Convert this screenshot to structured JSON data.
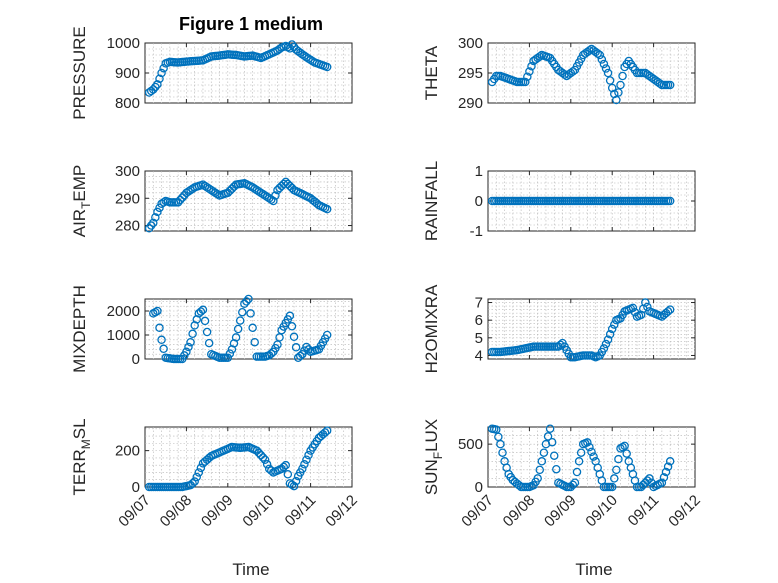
{
  "figure": {
    "title": "Figure 1 medium",
    "xlabel": "Time",
    "x_tick_labels": [
      "09/07",
      "09/08",
      "09/09",
      "09/10",
      "09/11",
      "09/12"
    ],
    "marker_color": "#0072BD"
  },
  "chart_data": [
    {
      "type": "scatter",
      "title": "Figure 1 medium",
      "ylabel": "PRESSURE",
      "ylim": [
        800,
        1000
      ],
      "yticks": [
        800,
        900,
        1000
      ],
      "xlim": [
        0,
        5
      ],
      "grid": true,
      "x": [
        0.1,
        0.2,
        0.3,
        0.4,
        0.5,
        0.6,
        0.8,
        1.0,
        1.2,
        1.4,
        1.6,
        1.8,
        2.0,
        2.2,
        2.4,
        2.6,
        2.8,
        3.0,
        3.2,
        3.3,
        3.4,
        3.5,
        3.55,
        3.65,
        3.8,
        3.95,
        4.1,
        4.3,
        4.4
      ],
      "y": [
        835,
        845,
        862,
        900,
        932,
        937,
        935,
        938,
        940,
        942,
        955,
        958,
        962,
        960,
        955,
        958,
        950,
        962,
        975,
        985,
        990,
        982,
        995,
        978,
        962,
        948,
        935,
        925,
        920
      ]
    },
    {
      "type": "scatter",
      "title": "",
      "ylabel": "THETA",
      "ylim": [
        290,
        300
      ],
      "yticks": [
        290,
        295,
        300
      ],
      "xlim": [
        0,
        5
      ],
      "grid": true,
      "x": [
        0.1,
        0.2,
        0.3,
        0.5,
        0.7,
        0.9,
        1.1,
        1.3,
        1.5,
        1.7,
        1.9,
        2.1,
        2.3,
        2.5,
        2.7,
        2.8,
        2.9,
        3.0,
        3.1,
        3.2,
        3.3,
        3.4,
        3.6,
        3.8,
        4.0,
        4.2,
        4.4
      ],
      "y": [
        293.5,
        294.5,
        294.5,
        294.0,
        293.5,
        293.5,
        297.0,
        298.0,
        297.5,
        295.5,
        294.5,
        295.5,
        298.0,
        299.0,
        298.0,
        296.5,
        295.0,
        292.5,
        290.5,
        293.0,
        296.0,
        297.0,
        295.0,
        295.0,
        294.0,
        293.0,
        293.0
      ]
    },
    {
      "type": "scatter",
      "title": "",
      "ylabel": "AIR_TEMP",
      "ylim": [
        278,
        300
      ],
      "yticks": [
        280,
        290,
        300
      ],
      "xlim": [
        0,
        5
      ],
      "grid": true,
      "x": [
        0.1,
        0.2,
        0.3,
        0.4,
        0.5,
        0.6,
        0.8,
        1.0,
        1.2,
        1.4,
        1.6,
        1.8,
        2.0,
        2.2,
        2.4,
        2.6,
        2.8,
        3.0,
        3.1,
        3.2,
        3.4,
        3.6,
        3.8,
        4.0,
        4.2,
        4.4
      ],
      "y": [
        279,
        281,
        285,
        288,
        289,
        288.5,
        288.5,
        292,
        294,
        295,
        293,
        291,
        292,
        295,
        295.5,
        294,
        292,
        290,
        289,
        293,
        296,
        293,
        291.5,
        290,
        287.5,
        286
      ]
    },
    {
      "type": "scatter",
      "title": "",
      "ylabel": "RAINFALL",
      "ylim": [
        -1,
        1
      ],
      "yticks": [
        -1,
        0,
        1
      ],
      "xlim": [
        0,
        5
      ],
      "grid": true,
      "x": [
        0.1,
        0.3,
        0.5,
        0.7,
        0.9,
        1.1,
        1.3,
        1.5,
        1.7,
        1.9,
        2.1,
        2.3,
        2.5,
        2.7,
        2.9,
        3.1,
        3.3,
        3.5,
        3.7,
        3.9,
        4.1,
        4.3,
        4.4
      ],
      "y": [
        0,
        0,
        0,
        0,
        0,
        0,
        0,
        0,
        0,
        0,
        0,
        0,
        0,
        0,
        0,
        0,
        0,
        0,
        0,
        0,
        0,
        0,
        0
      ]
    },
    {
      "type": "scatter",
      "title": "",
      "ylabel": "MIXDEPTH",
      "ylim": [
        0,
        2500
      ],
      "yticks": [
        0,
        1000,
        2000
      ],
      "xlim": [
        0,
        5
      ],
      "grid": true,
      "x": [
        0.2,
        0.3,
        0.35,
        0.4,
        0.5,
        0.7,
        0.9,
        1.0,
        1.1,
        1.2,
        1.3,
        1.4,
        1.6,
        1.8,
        2.0,
        2.1,
        2.2,
        2.3,
        2.4,
        2.5,
        2.7,
        2.9,
        3.0,
        3.1,
        3.2,
        3.3,
        3.5,
        3.7,
        3.8,
        3.9,
        4.0,
        4.1,
        4.2,
        4.3,
        4.4
      ],
      "y": [
        1900,
        2000,
        1300,
        800,
        50,
        0,
        0,
        300,
        700,
        1400,
        1900,
        2050,
        200,
        50,
        50,
        400,
        900,
        1600,
        2300,
        2500,
        100,
        100,
        150,
        300,
        600,
        1200,
        1800,
        50,
        200,
        500,
        300,
        350,
        400,
        700,
        1000
      ]
    },
    {
      "type": "scatter",
      "title": "",
      "ylabel": "H2OMIXRA",
      "ylim": [
        3.8,
        7.2
      ],
      "yticks": [
        4,
        5,
        6,
        7
      ],
      "xlim": [
        0,
        5
      ],
      "grid": true,
      "x": [
        0.1,
        0.3,
        0.5,
        0.7,
        0.9,
        1.1,
        1.3,
        1.5,
        1.7,
        1.8,
        1.9,
        2.0,
        2.1,
        2.3,
        2.5,
        2.6,
        2.7,
        2.8,
        2.9,
        3.0,
        3.1,
        3.2,
        3.3,
        3.5,
        3.6,
        3.7,
        3.8,
        3.9,
        4.0,
        4.2,
        4.4
      ],
      "y": [
        4.2,
        4.2,
        4.25,
        4.3,
        4.4,
        4.5,
        4.5,
        4.5,
        4.5,
        4.7,
        4.3,
        3.9,
        3.9,
        4.0,
        4.0,
        3.9,
        4.0,
        4.4,
        4.9,
        5.5,
        6.0,
        6.1,
        6.5,
        6.7,
        6.2,
        6.3,
        7.0,
        6.5,
        6.4,
        6.2,
        6.6
      ]
    },
    {
      "type": "scatter",
      "title": "",
      "ylabel": "TERR_MSL",
      "ylim": [
        0,
        330
      ],
      "yticks": [
        0,
        200
      ],
      "xlim": [
        0,
        5
      ],
      "grid": true,
      "x": [
        0.1,
        0.3,
        0.5,
        0.7,
        0.9,
        1.0,
        1.1,
        1.2,
        1.3,
        1.4,
        1.5,
        1.6,
        1.7,
        1.9,
        2.1,
        2.3,
        2.5,
        2.7,
        2.9,
        3.0,
        3.1,
        3.2,
        3.3,
        3.4,
        3.5,
        3.6,
        3.7,
        3.8,
        3.9,
        4.0,
        4.2,
        4.4
      ],
      "y": [
        0,
        0,
        0,
        0,
        0,
        5,
        10,
        30,
        80,
        130,
        150,
        170,
        180,
        200,
        220,
        215,
        220,
        200,
        150,
        100,
        80,
        90,
        100,
        120,
        20,
        5,
        60,
        100,
        150,
        200,
        270,
        310
      ]
    },
    {
      "type": "scatter",
      "title": "",
      "ylabel": "SUN_FLUX",
      "ylim": [
        0,
        700
      ],
      "yticks": [
        0,
        500
      ],
      "xlim": [
        0,
        5
      ],
      "grid": true,
      "x": [
        0.1,
        0.2,
        0.3,
        0.4,
        0.5,
        0.6,
        0.8,
        1.0,
        1.1,
        1.2,
        1.3,
        1.4,
        1.5,
        1.7,
        1.9,
        2.0,
        2.1,
        2.2,
        2.3,
        2.4,
        2.6,
        2.8,
        3.0,
        3.1,
        3.2,
        3.3,
        3.4,
        3.6,
        3.7,
        3.8,
        3.9,
        4.0,
        4.2,
        4.4
      ],
      "y": [
        680,
        670,
        500,
        300,
        150,
        80,
        0,
        0,
        20,
        100,
        300,
        500,
        680,
        50,
        0,
        0,
        50,
        300,
        500,
        520,
        300,
        0,
        0,
        200,
        450,
        480,
        300,
        0,
        0,
        50,
        100,
        0,
        50,
        300
      ]
    }
  ]
}
